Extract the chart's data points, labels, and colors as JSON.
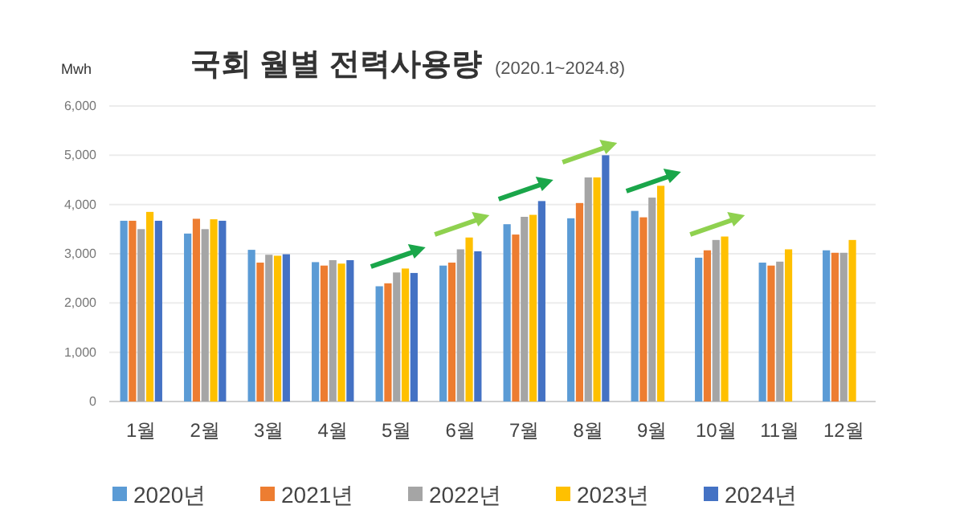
{
  "chart_data": {
    "type": "bar",
    "title": "국회 월별 전력사용량",
    "subtitle": "(2020.1~2024.8)",
    "ylabel": "Mwh",
    "categories": [
      "1월",
      "2월",
      "3월",
      "4월",
      "5월",
      "6월",
      "7월",
      "8월",
      "9월",
      "10월",
      "11월",
      "12월"
    ],
    "series": [
      {
        "name": "2020년",
        "color": "#5b9bd5",
        "values": [
          3670,
          3410,
          3080,
          2830,
          2340,
          2760,
          3600,
          3720,
          3870,
          2920,
          2820,
          3070
        ]
      },
      {
        "name": "2021년",
        "color": "#ed7d31",
        "values": [
          3670,
          3710,
          2820,
          2760,
          2400,
          2820,
          3390,
          4030,
          3740,
          3070,
          2760,
          3020
        ]
      },
      {
        "name": "2022년",
        "color": "#a5a5a5",
        "values": [
          3500,
          3500,
          2980,
          2870,
          2620,
          3090,
          3750,
          4550,
          4140,
          3280,
          2840,
          3020
        ]
      },
      {
        "name": "2023년",
        "color": "#ffc000",
        "values": [
          3850,
          3700,
          2960,
          2800,
          2700,
          3330,
          3790,
          4550,
          4380,
          3350,
          3090,
          3280
        ]
      },
      {
        "name": "2024년",
        "color": "#4472c4",
        "values": [
          3670,
          3670,
          2990,
          2870,
          2610,
          3050,
          4070,
          5000,
          null,
          null,
          null,
          null
        ]
      }
    ],
    "ylim": [
      0,
      6000
    ],
    "yticks": [
      {
        "value": 0,
        "label": "0"
      },
      {
        "value": 1000,
        "label": "1,000"
      },
      {
        "value": 2000,
        "label": "2,000"
      },
      {
        "value": 3000,
        "label": "3,000"
      },
      {
        "value": 4000,
        "label": "4,000"
      },
      {
        "value": 5000,
        "label": "5,000"
      },
      {
        "value": 6000,
        "label": "6,000"
      }
    ],
    "grid": "y",
    "legend": "bottom"
  }
}
